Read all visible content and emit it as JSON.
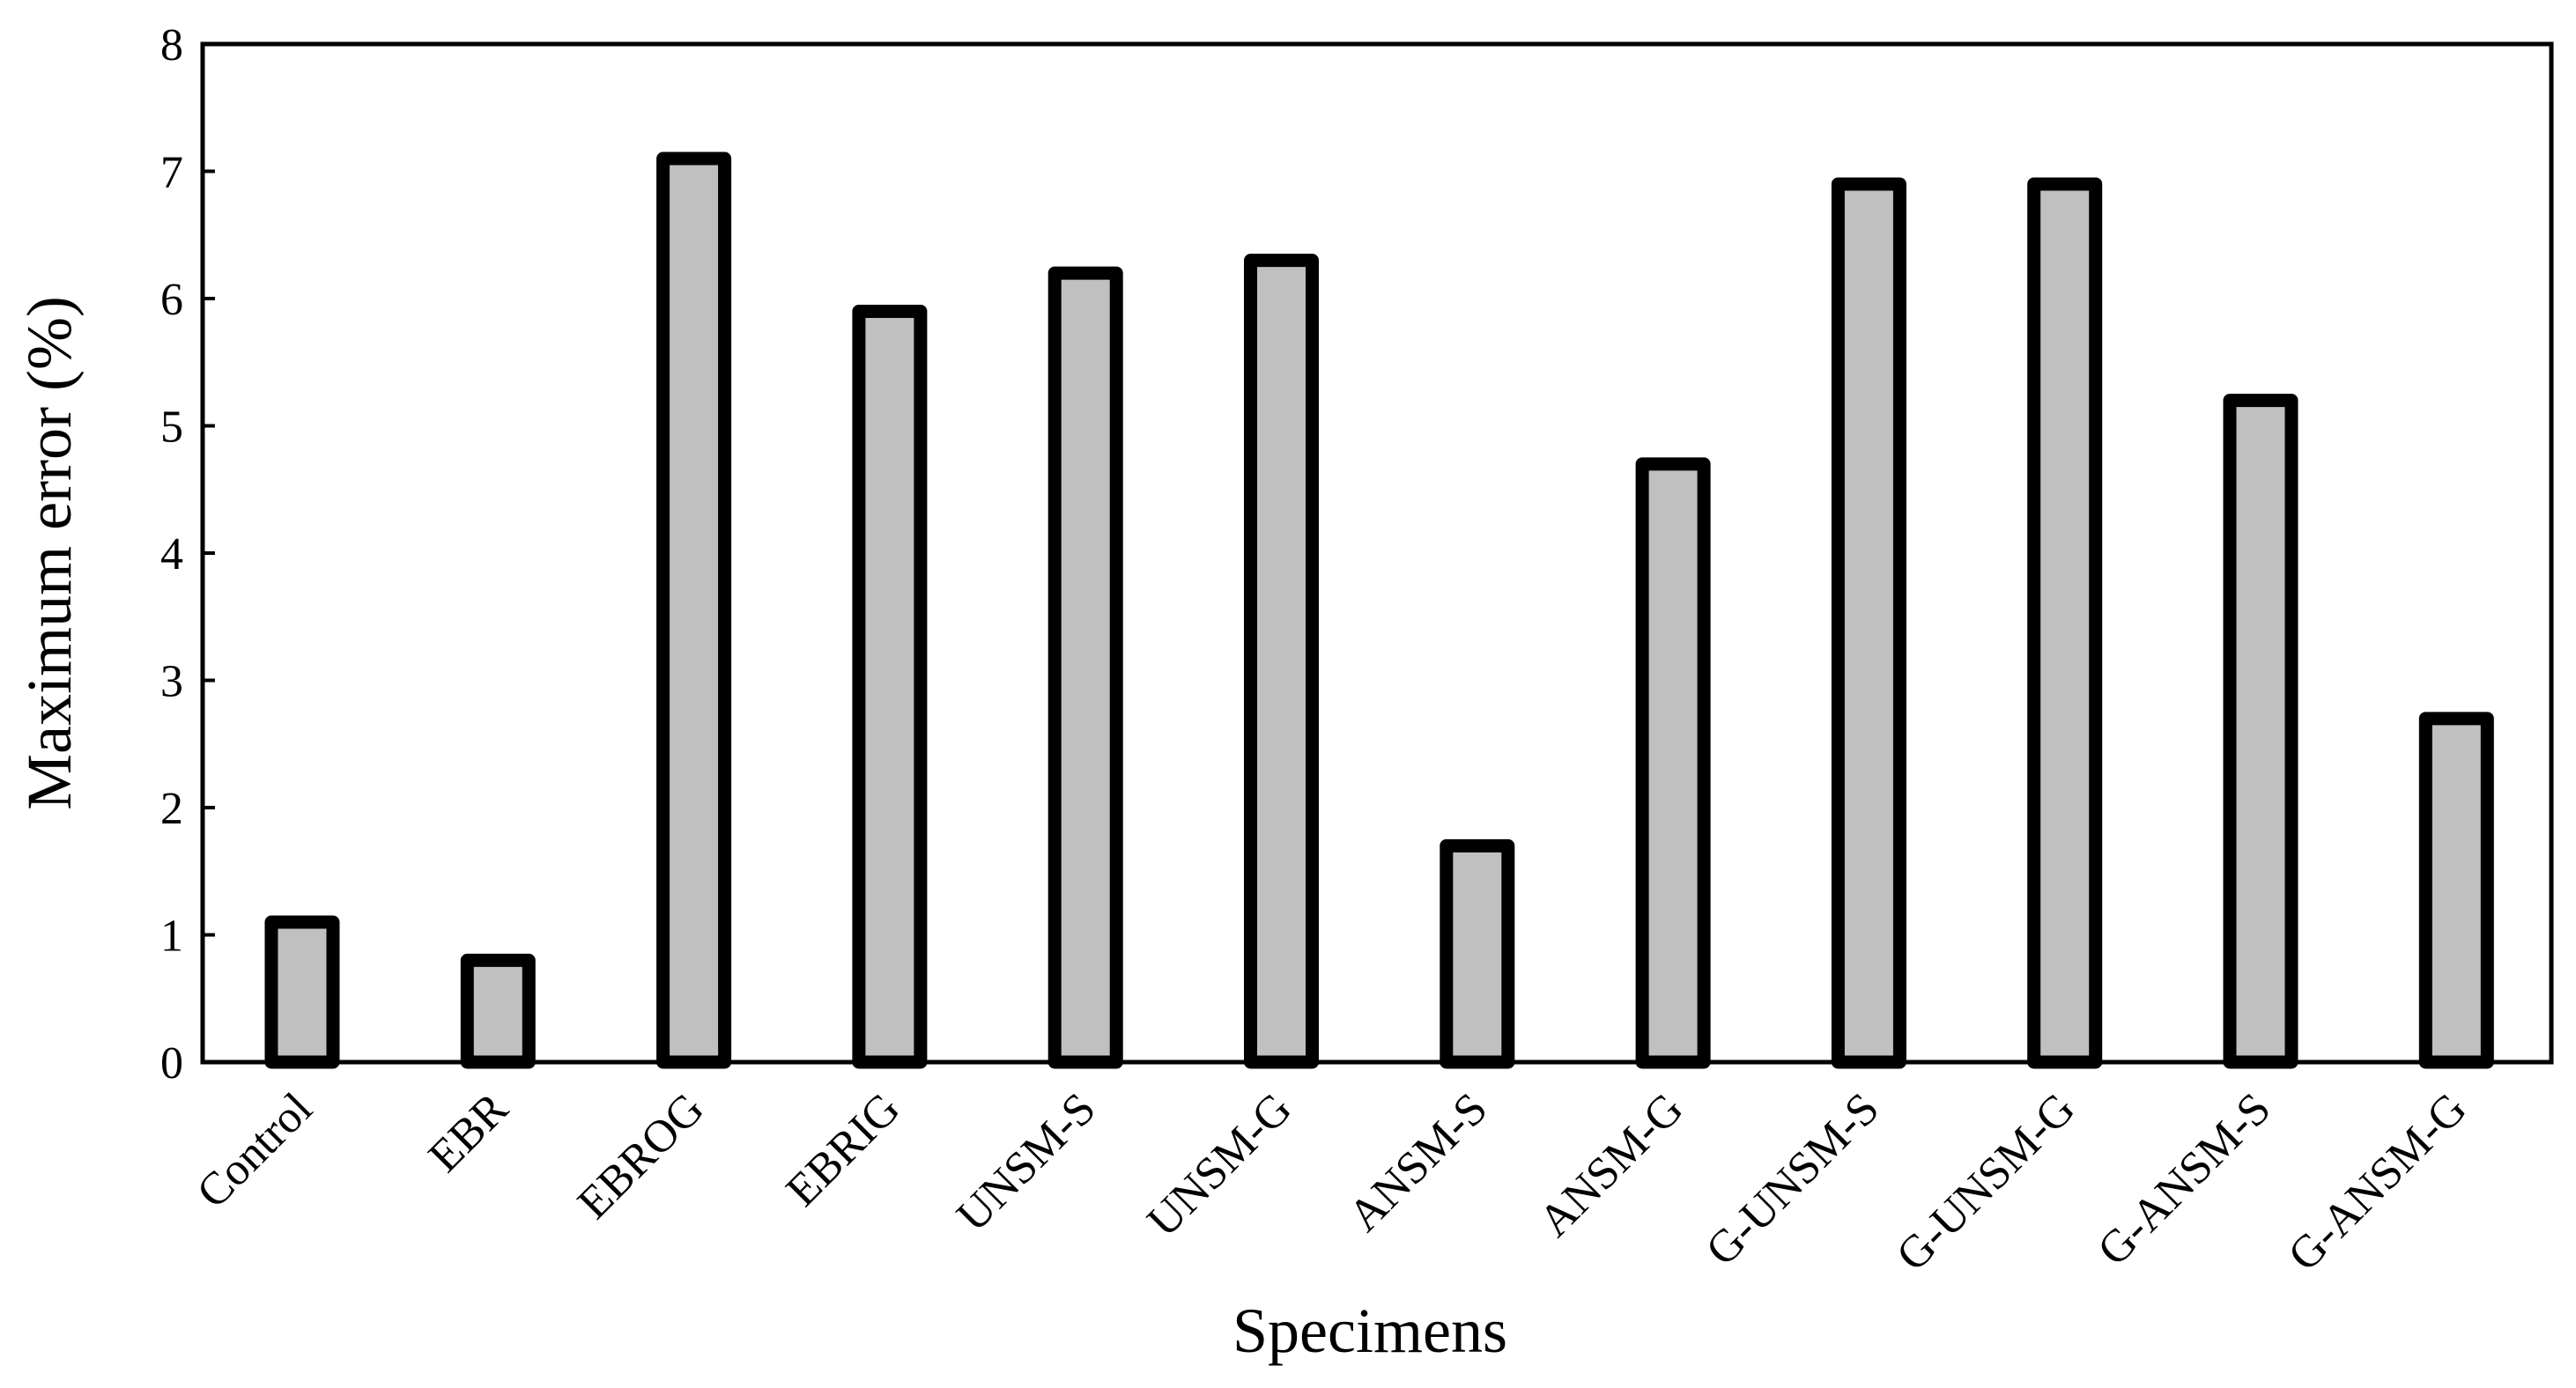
{
  "chart_data": {
    "type": "bar",
    "categories": [
      "Control",
      "EBR",
      "EBROG",
      "EBRIG",
      "UNSM-S",
      "UNSM-G",
      "ANSM-S",
      "ANSM-G",
      "G-UNSM-S",
      "G-UNSM-G",
      "G-ANSM-S",
      "G-ANSM-G"
    ],
    "values": [
      1.1,
      0.8,
      7.1,
      5.9,
      6.2,
      6.3,
      1.7,
      4.7,
      6.9,
      6.9,
      5.2,
      2.7
    ],
    "title": "",
    "xlabel": "Specimens",
    "ylabel": "Maximum error (%)",
    "ylim": [
      0,
      8
    ],
    "yticks": [
      0,
      1,
      2,
      3,
      4,
      5,
      6,
      7,
      8
    ],
    "grid": false,
    "legend": "none",
    "colors": {
      "bar_fill": "#c0c0c0",
      "bar_edge": "#000000"
    }
  }
}
